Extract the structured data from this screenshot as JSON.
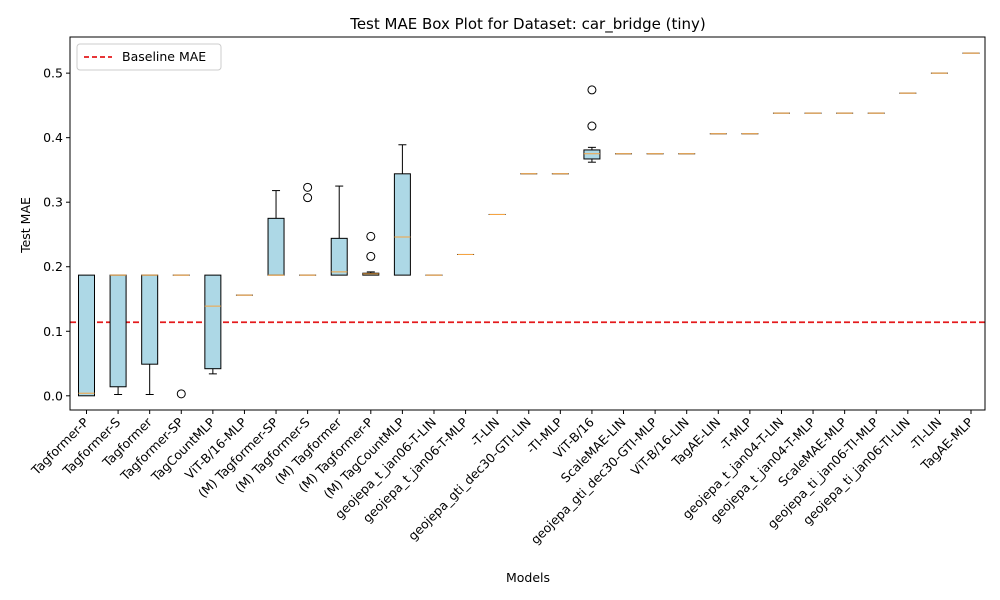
{
  "chart_data": {
    "type": "box",
    "title": "Test MAE Box Plot for Dataset: car_bridge (tiny)",
    "xlabel": "Models",
    "ylabel": "Test MAE",
    "ylim": [
      -0.022,
      0.556
    ],
    "yticks": [
      "0.0",
      "0.1",
      "0.2",
      "0.3",
      "0.4",
      "0.5"
    ],
    "ytick_values": [
      0.0,
      0.1,
      0.2,
      0.3,
      0.4,
      0.5
    ],
    "legend": {
      "position": "top-left",
      "entries": [
        {
          "label": "Baseline MAE",
          "style": "dashed",
          "color": "#e41a1c"
        }
      ]
    },
    "baseline": {
      "name": "Baseline MAE",
      "value": 0.114,
      "color": "#e41a1c"
    },
    "box_color": "#add8e6",
    "median_color": "#f5a442",
    "categories": [
      "Tagformer-P",
      "Tagformer-S",
      "Tagformer",
      "Tagformer-SP",
      "TagCountMLP",
      "ViT-B/16-MLP",
      "(M) Tagformer-SP",
      "(M) Tagformer-S",
      "(M) Tagformer",
      "(M) Tagformer-P",
      "(M) TagCountMLP",
      "geojepa_t_jan06-T-LIN",
      "geojepa_t_jan06-T-MLP",
      "-T-LIN",
      "geojepa_gti_dec30-GTI-LIN",
      "-TI-MLP",
      "ViT-B/16",
      "ScaleMAE-LIN",
      "geojepa_gti_dec30-GTI-MLP",
      "ViT-B/16-LIN",
      "TagAE-LIN",
      "-T-MLP",
      "geojepa_t_jan04-T-LIN",
      "geojepa_t_jan04-T-MLP",
      "ScaleMAE-MLP",
      "geojepa_ti_jan06-TI-MLP",
      "geojepa_ti_jan06-TI-LIN",
      "-TI-LIN",
      "TagAE-MLP"
    ],
    "boxes": [
      {
        "whislo": 0.0,
        "q1": 0.0,
        "med": 0.004,
        "q3": 0.187,
        "whishi": 0.187,
        "fliers": []
      },
      {
        "whislo": 0.002,
        "q1": 0.014,
        "med": 0.187,
        "q3": 0.187,
        "whishi": 0.187,
        "fliers": []
      },
      {
        "whislo": 0.002,
        "q1": 0.049,
        "med": 0.187,
        "q3": 0.187,
        "whishi": 0.187,
        "fliers": []
      },
      {
        "whislo": 0.187,
        "q1": 0.187,
        "med": 0.187,
        "q3": 0.187,
        "whishi": 0.187,
        "fliers": [
          0.003
        ]
      },
      {
        "whislo": 0.034,
        "q1": 0.042,
        "med": 0.139,
        "q3": 0.187,
        "whishi": 0.187,
        "fliers": []
      },
      {
        "whislo": 0.156,
        "q1": 0.156,
        "med": 0.156,
        "q3": 0.156,
        "whishi": 0.156,
        "fliers": []
      },
      {
        "whislo": 0.187,
        "q1": 0.187,
        "med": 0.187,
        "q3": 0.275,
        "whishi": 0.318,
        "fliers": []
      },
      {
        "whislo": 0.187,
        "q1": 0.187,
        "med": 0.187,
        "q3": 0.187,
        "whishi": 0.187,
        "fliers": [
          0.307,
          0.323
        ]
      },
      {
        "whislo": 0.187,
        "q1": 0.187,
        "med": 0.192,
        "q3": 0.244,
        "whishi": 0.325,
        "fliers": []
      },
      {
        "whislo": 0.187,
        "q1": 0.187,
        "med": 0.189,
        "q3": 0.19,
        "whishi": 0.192,
        "fliers": [
          0.216,
          0.247
        ]
      },
      {
        "whislo": 0.187,
        "q1": 0.187,
        "med": 0.246,
        "q3": 0.344,
        "whishi": 0.389,
        "fliers": []
      },
      {
        "whislo": 0.187,
        "q1": 0.187,
        "med": 0.187,
        "q3": 0.187,
        "whishi": 0.187,
        "fliers": []
      },
      {
        "whislo": 0.219,
        "q1": 0.219,
        "med": 0.219,
        "q3": 0.219,
        "whishi": 0.219,
        "fliers": []
      },
      {
        "whislo": 0.281,
        "q1": 0.281,
        "med": 0.281,
        "q3": 0.281,
        "whishi": 0.281,
        "fliers": []
      },
      {
        "whislo": 0.344,
        "q1": 0.344,
        "med": 0.344,
        "q3": 0.344,
        "whishi": 0.344,
        "fliers": []
      },
      {
        "whislo": 0.344,
        "q1": 0.344,
        "med": 0.344,
        "q3": 0.344,
        "whishi": 0.344,
        "fliers": []
      },
      {
        "whislo": 0.362,
        "q1": 0.367,
        "med": 0.375,
        "q3": 0.381,
        "whishi": 0.385,
        "fliers": [
          0.418,
          0.474
        ]
      },
      {
        "whislo": 0.375,
        "q1": 0.375,
        "med": 0.375,
        "q3": 0.375,
        "whishi": 0.375,
        "fliers": []
      },
      {
        "whislo": 0.375,
        "q1": 0.375,
        "med": 0.375,
        "q3": 0.375,
        "whishi": 0.375,
        "fliers": []
      },
      {
        "whislo": 0.375,
        "q1": 0.375,
        "med": 0.375,
        "q3": 0.375,
        "whishi": 0.375,
        "fliers": []
      },
      {
        "whislo": 0.406,
        "q1": 0.406,
        "med": 0.406,
        "q3": 0.406,
        "whishi": 0.406,
        "fliers": []
      },
      {
        "whislo": 0.406,
        "q1": 0.406,
        "med": 0.406,
        "q3": 0.406,
        "whishi": 0.406,
        "fliers": []
      },
      {
        "whislo": 0.438,
        "q1": 0.438,
        "med": 0.438,
        "q3": 0.438,
        "whishi": 0.438,
        "fliers": []
      },
      {
        "whislo": 0.438,
        "q1": 0.438,
        "med": 0.438,
        "q3": 0.438,
        "whishi": 0.438,
        "fliers": []
      },
      {
        "whislo": 0.438,
        "q1": 0.438,
        "med": 0.438,
        "q3": 0.438,
        "whishi": 0.438,
        "fliers": []
      },
      {
        "whislo": 0.438,
        "q1": 0.438,
        "med": 0.438,
        "q3": 0.438,
        "whishi": 0.438,
        "fliers": []
      },
      {
        "whislo": 0.469,
        "q1": 0.469,
        "med": 0.469,
        "q3": 0.469,
        "whishi": 0.469,
        "fliers": []
      },
      {
        "whislo": 0.5,
        "q1": 0.5,
        "med": 0.5,
        "q3": 0.5,
        "whishi": 0.5,
        "fliers": []
      },
      {
        "whislo": 0.531,
        "q1": 0.531,
        "med": 0.531,
        "q3": 0.531,
        "whishi": 0.531,
        "fliers": []
      }
    ],
    "grid": false
  }
}
